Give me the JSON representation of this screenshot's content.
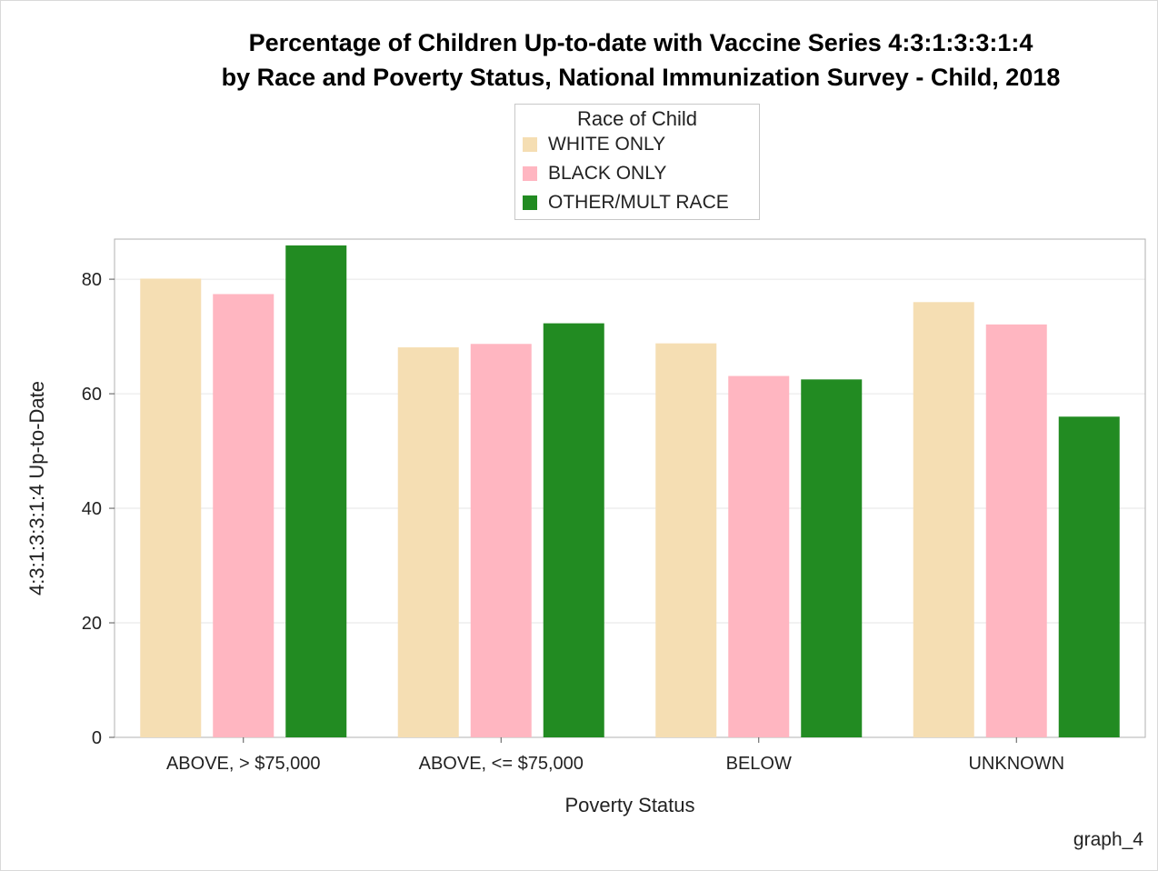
{
  "chart_data": {
    "type": "bar",
    "title": "Percentage of Children Up-to-date with Vaccine Series 4:3:1:3:3:1:4",
    "subtitle": "by Race and Poverty Status, National Immunization Survey - Child, 2018",
    "xlabel": "Poverty Status",
    "ylabel": "4:3:1:3:3:1:4 Up-to-Date",
    "categories": [
      "ABOVE, > $75,000",
      "ABOVE, <= $75,000",
      "BELOW",
      "UNKNOWN"
    ],
    "series": [
      {
        "name": "WHITE ONLY",
        "color": "#f5deb3",
        "values": [
          80.1,
          68.1,
          68.8,
          76.0
        ]
      },
      {
        "name": "BLACK ONLY",
        "color": "#ffb6c1",
        "values": [
          77.4,
          68.7,
          63.1,
          72.1
        ]
      },
      {
        "name": "OTHER/MULT RACE",
        "color": "#228b22",
        "values": [
          85.9,
          72.3,
          62.5,
          56.0
        ]
      }
    ],
    "ylim": [
      0,
      87
    ],
    "yticks": [
      0,
      20,
      40,
      60,
      80
    ],
    "grid": true,
    "legend_title": "Race of Child",
    "legend_position": "top-center"
  },
  "footnote": "graph_4"
}
